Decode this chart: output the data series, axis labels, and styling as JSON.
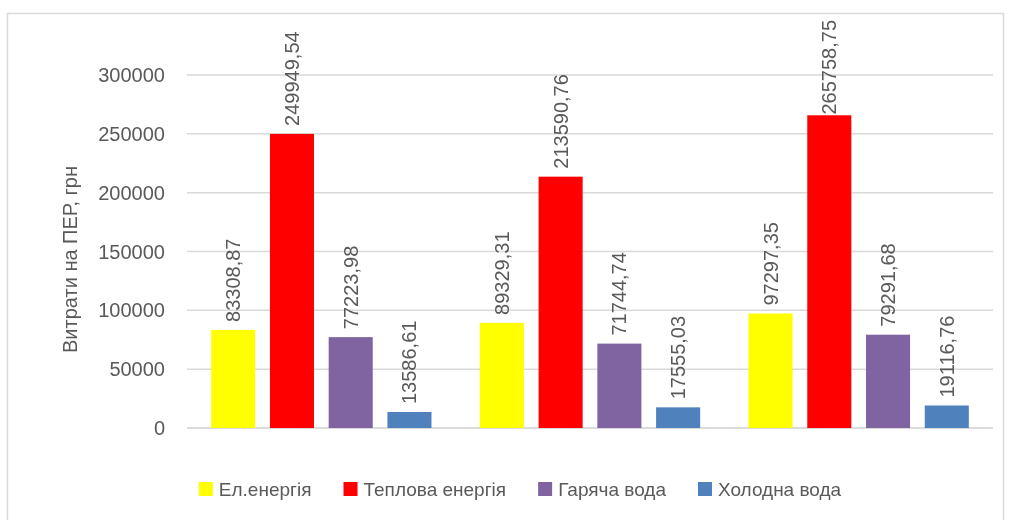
{
  "chart_data": {
    "type": "bar",
    "ylabel": "Витрати на ПЕР, грн",
    "categories": [
      null,
      null,
      null
    ],
    "series": [
      {
        "name": "Ел.енергія",
        "color": "#ffff00",
        "values": [
          83308.87,
          89329.31,
          97297.35
        ],
        "value_labels": [
          "83308,87",
          "89329,31",
          "97297,35"
        ]
      },
      {
        "name": "Теплова енергія",
        "color": "#ff0000",
        "values": [
          249949.54,
          213590.76,
          265758.75
        ],
        "value_labels": [
          "249949,54",
          "213590,76",
          "265758,75"
        ]
      },
      {
        "name": "Гаряча вода",
        "color": "#8064a2",
        "values": [
          77223.98,
          71744.74,
          79291.68
        ],
        "value_labels": [
          "77223,98",
          "71744,74",
          "79291,68"
        ]
      },
      {
        "name": "Холодна вода",
        "color": "#4f81bd",
        "values": [
          13586.61,
          17555.03,
          19116.76
        ],
        "value_labels": [
          "13586,61",
          "17555,03",
          "19116,76"
        ]
      }
    ],
    "ylim": [
      0,
      300000
    ],
    "yticks": [
      0,
      50000,
      100000,
      150000,
      200000,
      250000,
      300000
    ],
    "grid": "y",
    "legend": "bottom"
  }
}
